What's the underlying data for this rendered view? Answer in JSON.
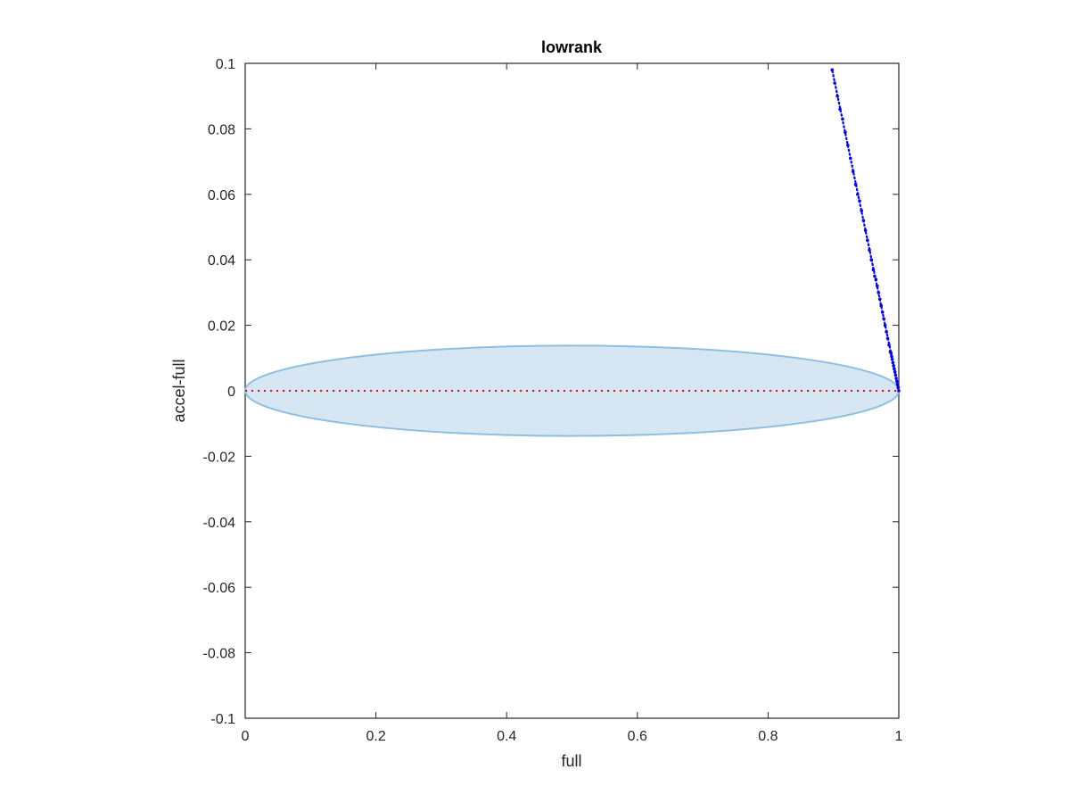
{
  "chart_data": {
    "type": "scatter",
    "title": "lowrank",
    "xlabel": "full",
    "ylabel": "accel-full",
    "xlim": [
      0,
      1
    ],
    "ylim": [
      -0.1,
      0.1
    ],
    "xticks": [
      0,
      0.2,
      0.4,
      0.6,
      0.8,
      1
    ],
    "yticks": [
      -0.1,
      -0.08,
      -0.06,
      -0.04,
      -0.02,
      0,
      0.02,
      0.04,
      0.06,
      0.08,
      0.1
    ],
    "xtick_labels": [
      "0",
      "0.2",
      "0.4",
      "0.6",
      "0.8",
      "1"
    ],
    "ytick_labels": [
      "-0.1",
      "-0.08",
      "-0.06",
      "-0.04",
      "-0.02",
      "0",
      "0.02",
      "0.04",
      "0.06",
      "0.08",
      "0.1"
    ],
    "grid": false,
    "box": true,
    "series": [
      {
        "type": "scatter",
        "color": "#0000ff",
        "line_from": [
          1.0,
          0.0
        ],
        "line_to": [
          0.898,
          0.098
        ],
        "x": [
          0.898,
          0.902,
          0.906,
          0.91,
          0.914,
          0.918,
          0.922,
          0.926,
          0.93,
          0.934,
          0.937,
          0.94,
          0.943,
          0.946,
          0.949,
          0.952,
          0.955,
          0.958,
          0.961,
          0.963,
          0.965,
          0.967,
          0.969,
          0.971,
          0.973,
          0.975,
          0.977,
          0.979,
          0.981,
          0.983,
          0.985,
          0.987,
          0.988,
          0.989,
          0.99,
          0.991,
          0.992,
          0.993,
          0.994,
          0.995,
          0.996,
          0.997,
          0.998,
          0.999,
          1.0
        ],
        "y": [
          0.098,
          0.094,
          0.09,
          0.086,
          0.083,
          0.079,
          0.075,
          0.071,
          0.067,
          0.063,
          0.06,
          0.058,
          0.055,
          0.052,
          0.049,
          0.046,
          0.043,
          0.04,
          0.037,
          0.035,
          0.034,
          0.032,
          0.03,
          0.028,
          0.026,
          0.024,
          0.022,
          0.02,
          0.018,
          0.016,
          0.014,
          0.012,
          0.0115,
          0.0105,
          0.0096,
          0.0086,
          0.0077,
          0.0067,
          0.0058,
          0.0048,
          0.0038,
          0.0029,
          0.0019,
          0.001,
          0.0
        ]
      }
    ],
    "ellipse": {
      "center": [
        0.5,
        0.0
      ],
      "radius_x": 0.5,
      "radius_y": 0.0138,
      "fill": "#d6e7f3",
      "stroke": "#8ebee0"
    },
    "reference_line": {
      "y": 0,
      "x_range": [
        0,
        1
      ],
      "color": "#ff0000",
      "style": "dotted"
    }
  }
}
